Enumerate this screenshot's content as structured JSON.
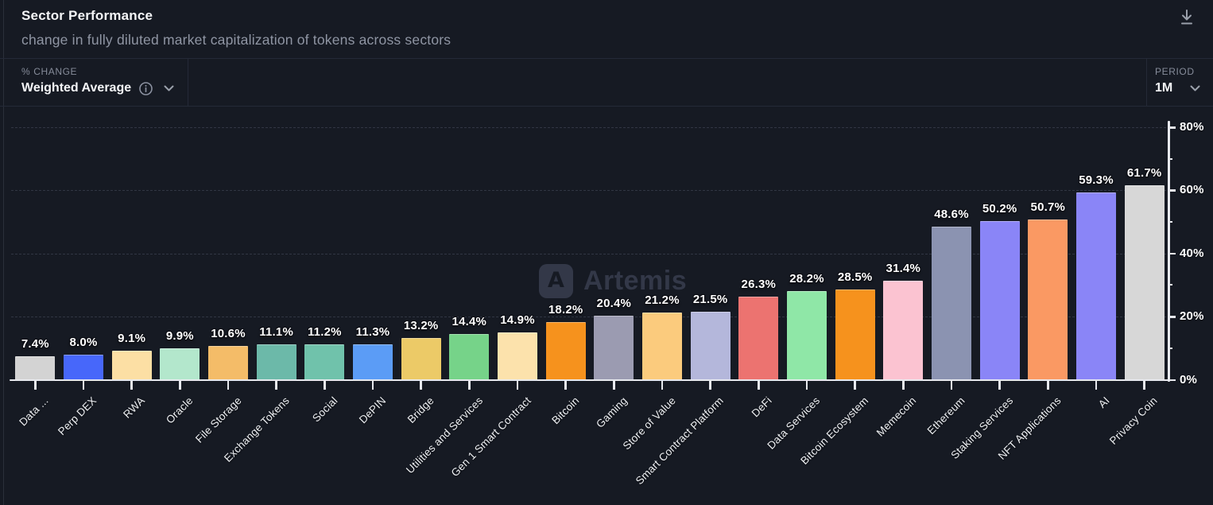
{
  "header": {
    "title": "Sector Performance",
    "subtitle": "change in fully diluted market capitalization of tokens across sectors"
  },
  "icons": {
    "download": "download-icon (arrow down with underline)",
    "info": "info-icon (circled i)",
    "chevron": "chevron-down-icon"
  },
  "controls": {
    "metric": {
      "label": "% CHANGE",
      "value": "Weighted Average"
    },
    "period": {
      "label": "PERIOD",
      "value": "1M"
    }
  },
  "watermark": {
    "text": "Artemis",
    "logo_glyph": "A"
  },
  "colors": {
    "background": "#161a23",
    "divider": "#242937",
    "axis": "#e7e9ee",
    "gridline": "#3a404e",
    "text_primary": "#f4f5f7",
    "text_muted": "#8f95a3",
    "watermark": "#333848"
  },
  "chart_data": {
    "type": "bar",
    "title": "Sector Performance",
    "xlabel": "",
    "ylabel": "% change",
    "ylim": [
      0,
      80
    ],
    "legend": "none",
    "grid": "dashed horizontal",
    "y_axis_side": "right",
    "categories": [
      "Data ...",
      "Perp DEX",
      "RWA",
      "Oracle",
      "File Storage",
      "Exchange Tokens",
      "Social",
      "DePIN",
      "Bridge",
      "Utilities and Services",
      "Gen 1 Smart Contract",
      "Bitcoin",
      "Gaming",
      "Store of Value",
      "Smart Contract Platform",
      "DeFi",
      "Data Services",
      "Bitcoin Ecosystem",
      "Memecoin",
      "Ethereum",
      "Staking Services",
      "NFT Applications",
      "AI",
      "Privacy Coin"
    ],
    "values": [
      7.4,
      8.0,
      9.1,
      9.9,
      10.6,
      11.1,
      11.2,
      11.3,
      13.2,
      14.4,
      14.9,
      18.2,
      20.4,
      21.2,
      21.5,
      26.3,
      28.2,
      28.5,
      31.4,
      48.6,
      50.2,
      50.7,
      59.3,
      61.7
    ],
    "value_labels": [
      "7.4%",
      "8.0%",
      "9.1%",
      "9.9%",
      "10.6%",
      "11.1%",
      "11.2%",
      "11.3%",
      "13.2%",
      "14.4%",
      "14.9%",
      "18.2%",
      "20.4%",
      "21.2%",
      "21.5%",
      "26.3%",
      "28.2%",
      "28.5%",
      "31.4%",
      "48.6%",
      "50.2%",
      "50.7%",
      "59.3%",
      "61.7%"
    ],
    "bar_colors": [
      "#d3d3d3",
      "#4767fa",
      "#fcdfa4",
      "#b3e7cc",
      "#f4bc68",
      "#6cb9a9",
      "#70c2ab",
      "#5b9cf6",
      "#ecca67",
      "#76d389",
      "#fce2ac",
      "#f6921d",
      "#9b9bb1",
      "#fbcb7d",
      "#b4b7db",
      "#ec7370",
      "#8fe7a7",
      "#f6921d",
      "#fbc3d1",
      "#8b93b1",
      "#8a85f7",
      "#fa9963",
      "#8a85f7",
      "#d7d7d7"
    ],
    "y_tick_values": [
      0,
      20,
      40,
      60,
      80
    ],
    "y_tick_labels": [
      "0%",
      "20%",
      "40%",
      "60%",
      "80%"
    ],
    "y_minor_tick_values": [
      10,
      30,
      50,
      70
    ],
    "grid_values": [
      20,
      40,
      60,
      80
    ]
  }
}
